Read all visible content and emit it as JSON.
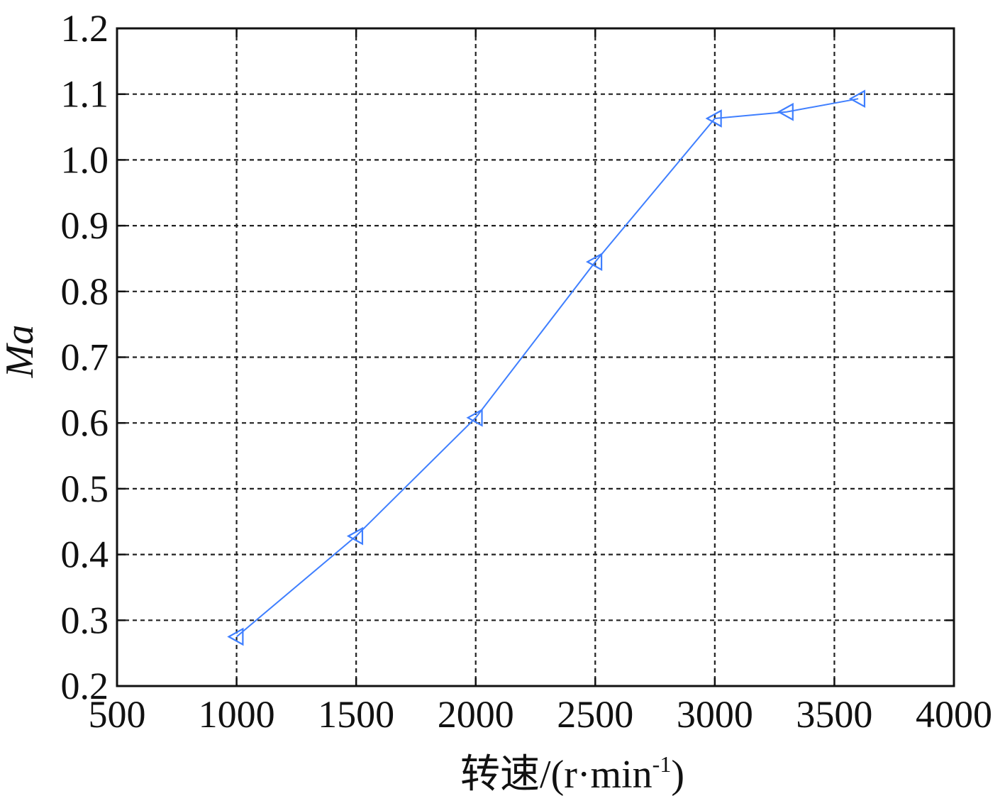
{
  "chart_data": {
    "type": "line",
    "xlabel_main": "转速/(",
    "xlabel_unit": "r·min",
    "xlabel_sup": "-1",
    "xlabel_close": ")",
    "ylabel": "Ma",
    "xlim": [
      500,
      4000
    ],
    "ylim": [
      0.2,
      1.2
    ],
    "x_ticks": [
      "500",
      "1000",
      "1500",
      "2000",
      "2500",
      "3000",
      "3500",
      "4000"
    ],
    "y_ticks": [
      "0.2",
      "0.3",
      "0.4",
      "0.5",
      "0.6",
      "0.7",
      "0.8",
      "0.9",
      "1.0",
      "1.1",
      "1.2"
    ],
    "grid": true,
    "marker": "triangle-left",
    "line_color": "#3f7fff",
    "series": [
      {
        "x": [
          1000,
          1500,
          2000,
          2500,
          3000,
          3300,
          3600
        ],
        "y": [
          0.275,
          0.428,
          0.608,
          0.845,
          1.063,
          1.073,
          1.093
        ]
      }
    ]
  }
}
